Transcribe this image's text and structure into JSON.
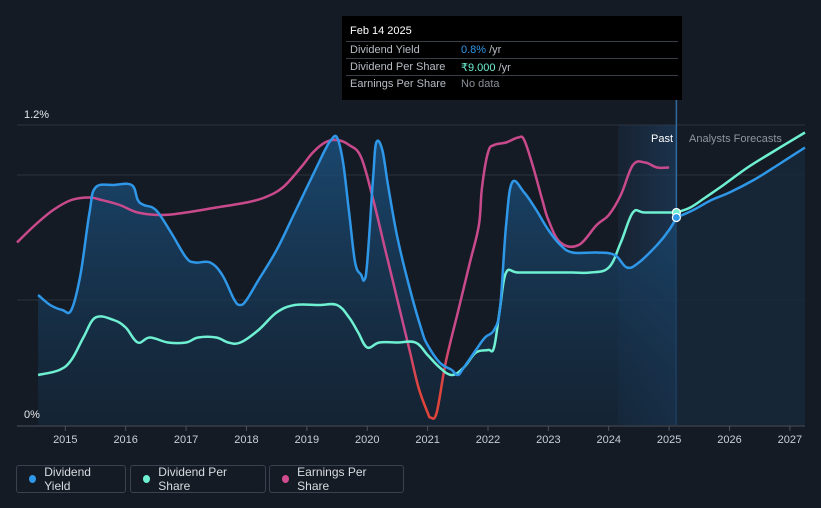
{
  "tooltip": {
    "date": "Feb 14 2025",
    "rows": [
      {
        "label": "Dividend Yield",
        "value": "0.8%",
        "unit": "/yr",
        "color": "#2f97e8"
      },
      {
        "label": "Dividend Per Share",
        "value": "₹9.000",
        "unit": "/yr",
        "color": "#6ff0d2"
      },
      {
        "label": "Earnings Per Share",
        "value": "No data",
        "unit": "",
        "color": "#8a9099"
      }
    ]
  },
  "regions": {
    "past": "Past",
    "forecast": "Analysts Forecasts"
  },
  "legend": [
    {
      "label": "Dividend Yield",
      "color": "#2f97e8"
    },
    {
      "label": "Dividend Per Share",
      "color": "#6ff0d2"
    },
    {
      "label": "Earnings Per Share",
      "color": "#d04c8e"
    }
  ],
  "chart_data": {
    "type": "line",
    "xlim": [
      2014.2,
      2027.25
    ],
    "ylim": [
      0,
      1.2
    ],
    "y_ticks": [
      {
        "value": 1.2,
        "label": "1.2%"
      },
      {
        "value": 0,
        "label": "0%"
      }
    ],
    "x_ticks": [
      2015,
      2016,
      2017,
      2018,
      2019,
      2020,
      2021,
      2022,
      2023,
      2024,
      2025,
      2026,
      2027
    ],
    "gridlines_y": [
      1.2,
      1.0,
      0.5
    ],
    "divider_x": 2025.12,
    "past_shade_from": 2024.15,
    "series": [
      {
        "name": "Dividend Yield",
        "color": "#2f97e8",
        "fill": true,
        "x": [
          2014.55,
          2014.75,
          2014.95,
          2015.1,
          2015.25,
          2015.4,
          2015.5,
          2015.8,
          2016.1,
          2016.2,
          2016.3,
          2016.5,
          2016.75,
          2017.0,
          2017.15,
          2017.4,
          2017.6,
          2017.8,
          2017.9,
          2018.0,
          2018.2,
          2018.5,
          2018.8,
          2019.0,
          2019.2,
          2019.3,
          2019.4,
          2019.5,
          2019.6,
          2019.7,
          2019.8,
          2019.9,
          2019.95,
          2020.0,
          2020.1,
          2020.15,
          2020.25,
          2020.35,
          2020.5,
          2020.7,
          2020.9,
          2021.0,
          2021.2,
          2021.4,
          2021.5,
          2021.6,
          2021.8,
          2021.95,
          2022.1,
          2022.2,
          2022.3,
          2022.4,
          2022.6,
          2022.8,
          2023.0,
          2023.2,
          2023.4,
          2023.8,
          2024.1,
          2024.3,
          2024.5,
          2024.8,
          2025.0,
          2025.12
        ],
        "y": [
          0.52,
          0.48,
          0.46,
          0.46,
          0.6,
          0.85,
          0.95,
          0.96,
          0.96,
          0.9,
          0.88,
          0.86,
          0.77,
          0.67,
          0.65,
          0.65,
          0.6,
          0.5,
          0.48,
          0.5,
          0.58,
          0.7,
          0.85,
          0.95,
          1.05,
          1.1,
          1.14,
          1.15,
          1.05,
          0.85,
          0.65,
          0.6,
          0.58,
          0.65,
          1.0,
          1.13,
          1.1,
          0.95,
          0.75,
          0.55,
          0.38,
          0.32,
          0.25,
          0.22,
          0.2,
          0.23,
          0.3,
          0.35,
          0.38,
          0.47,
          0.8,
          0.97,
          0.93,
          0.86,
          0.78,
          0.72,
          0.69,
          0.69,
          0.68,
          0.63,
          0.65,
          0.72,
          0.78,
          0.83
        ]
      },
      {
        "name": "Dividend Per Share",
        "color": "#6ff0d2",
        "fill": false,
        "x": [
          2014.55,
          2014.9,
          2015.1,
          2015.3,
          2015.5,
          2015.8,
          2016.0,
          2016.2,
          2016.4,
          2016.7,
          2017.0,
          2017.2,
          2017.5,
          2017.7,
          2017.9,
          2018.2,
          2018.5,
          2018.8,
          2019.2,
          2019.5,
          2019.7,
          2019.85,
          2020.0,
          2020.2,
          2020.5,
          2020.8,
          2021.0,
          2021.2,
          2021.4,
          2021.6,
          2021.8,
          2022.0,
          2022.1,
          2022.2,
          2022.3,
          2022.5,
          2023.0,
          2023.4,
          2023.7,
          2024.0,
          2024.2,
          2024.4,
          2024.6,
          2025.12
        ],
        "y": [
          0.2,
          0.22,
          0.26,
          0.35,
          0.43,
          0.42,
          0.39,
          0.33,
          0.35,
          0.33,
          0.33,
          0.35,
          0.35,
          0.33,
          0.33,
          0.38,
          0.45,
          0.48,
          0.48,
          0.48,
          0.43,
          0.37,
          0.31,
          0.33,
          0.33,
          0.33,
          0.28,
          0.23,
          0.2,
          0.23,
          0.29,
          0.3,
          0.31,
          0.47,
          0.61,
          0.61,
          0.61,
          0.61,
          0.61,
          0.63,
          0.73,
          0.85,
          0.85,
          0.85
        ]
      },
      {
        "name": "Earnings Per Share",
        "color": "#d04c8e",
        "fill": false,
        "x": [
          2014.2,
          2014.5,
          2014.8,
          2015.1,
          2015.4,
          2015.6,
          2015.9,
          2016.2,
          2016.6,
          2017.0,
          2017.5,
          2018.0,
          2018.3,
          2018.6,
          2018.9,
          2019.1,
          2019.3,
          2019.5,
          2019.7,
          2019.9,
          2020.1,
          2020.3,
          2020.5,
          2020.7,
          2020.85,
          2021.0,
          2021.05,
          2021.15,
          2021.3,
          2021.5,
          2021.7,
          2021.85,
          2021.9,
          2022.0,
          2022.1,
          2022.3,
          2022.5,
          2022.6,
          2022.75,
          2022.9,
          2023.0,
          2023.2,
          2023.5,
          2023.8,
          2024.0,
          2024.2,
          2024.4,
          2024.6,
          2024.8,
          2025.0
        ],
        "y": [
          0.73,
          0.8,
          0.86,
          0.9,
          0.91,
          0.9,
          0.88,
          0.85,
          0.84,
          0.85,
          0.87,
          0.89,
          0.91,
          0.95,
          1.03,
          1.09,
          1.13,
          1.14,
          1.12,
          1.07,
          0.9,
          0.7,
          0.5,
          0.3,
          0.15,
          0.05,
          0.03,
          0.05,
          0.25,
          0.45,
          0.65,
          0.8,
          0.95,
          1.09,
          1.12,
          1.13,
          1.15,
          1.14,
          1.03,
          0.9,
          0.82,
          0.73,
          0.72,
          0.8,
          0.84,
          0.92,
          1.04,
          1.05,
          1.03,
          1.03
        ]
      }
    ],
    "forecast_series": [
      {
        "name": "Dividend Yield",
        "color": "#2f97e8",
        "x": [
          2025.12,
          2025.4,
          2025.7,
          2026.0,
          2026.4,
          2026.8,
          2027.25
        ],
        "y": [
          0.83,
          0.86,
          0.9,
          0.93,
          0.98,
          1.04,
          1.11
        ]
      },
      {
        "name": "Dividend Per Share",
        "color": "#6ff0d2",
        "x": [
          2025.12,
          2025.35,
          2025.6,
          2025.9,
          2026.3,
          2026.7,
          2027.25
        ],
        "y": [
          0.85,
          0.87,
          0.91,
          0.96,
          1.03,
          1.09,
          1.17
        ]
      }
    ],
    "markers": [
      {
        "series": "Dividend Per Share",
        "x": 2025.12,
        "y": 0.85,
        "color": "#6ff0d2"
      },
      {
        "series": "Dividend Yield",
        "x": 2025.12,
        "y": 0.83,
        "color": "#2f97e8"
      }
    ]
  }
}
